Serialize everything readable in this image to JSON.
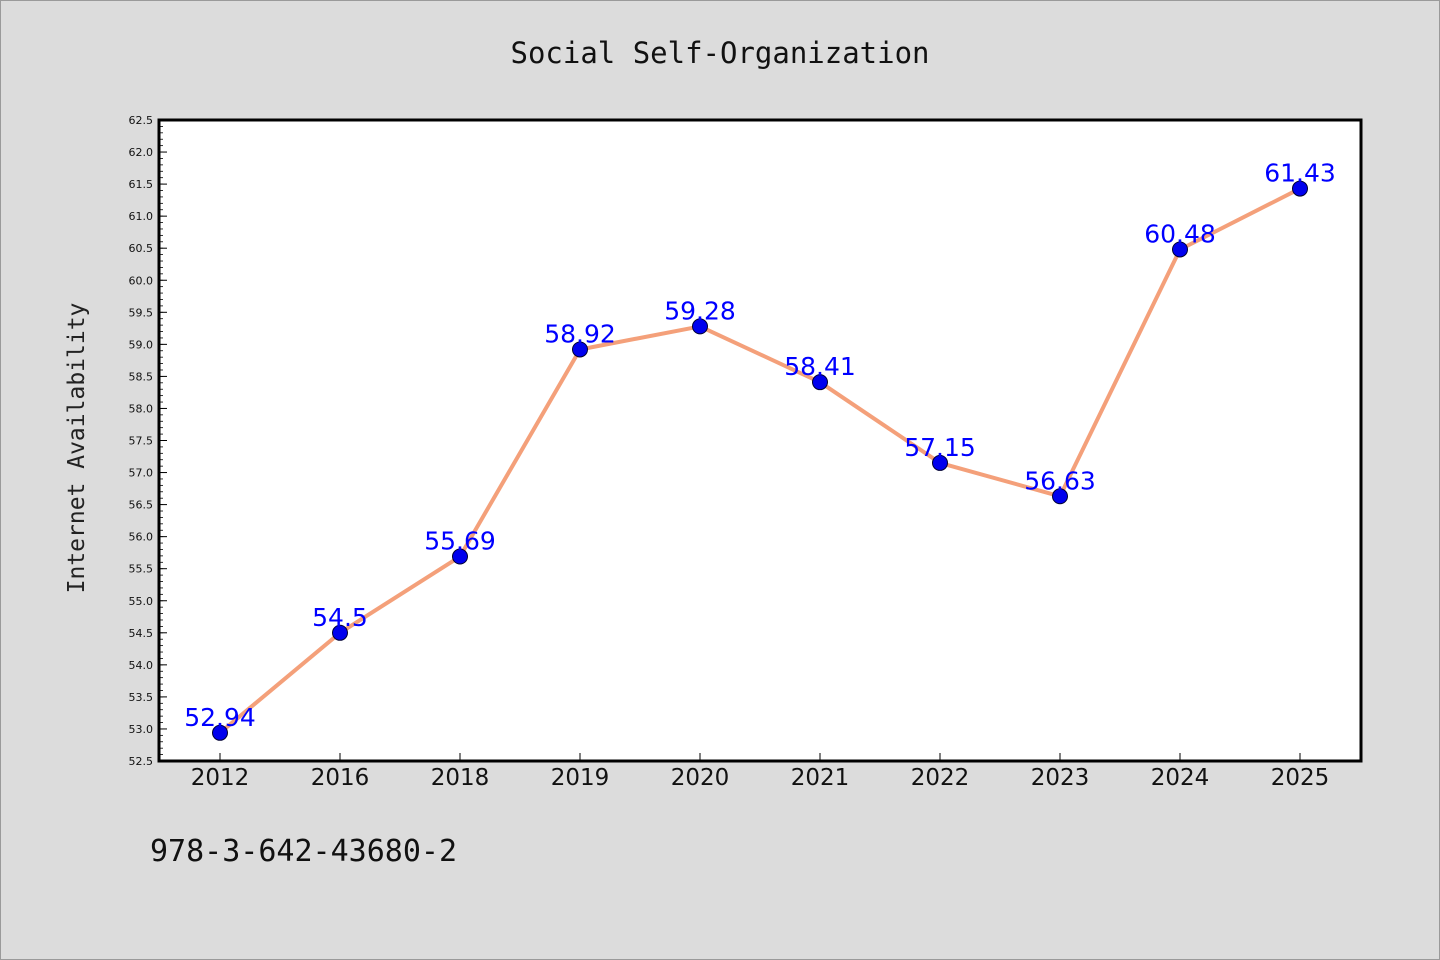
{
  "chart_data": {
    "type": "line",
    "title": "Social Self-Organization",
    "xlabel": "",
    "ylabel": "Internet Availability",
    "categories": [
      "2012",
      "2016",
      "2018",
      "2019",
      "2020",
      "2021",
      "2022",
      "2023",
      "2024",
      "2025"
    ],
    "series": [
      {
        "values": [
          52.94,
          54.5,
          55.69,
          58.92,
          59.28,
          58.41,
          57.15,
          56.63,
          60.48,
          61.43
        ],
        "data_labels": [
          "52.94",
          "54.5",
          "55.69",
          "58.92",
          "59.28",
          "58.41",
          "57.15",
          "56.63",
          "60.48",
          "61.43"
        ],
        "line_color": "#f4a07a",
        "marker_color": "#0000ee"
      }
    ],
    "ylim": [
      52.5,
      62.5
    ],
    "yticks": [
      "52.5",
      "53.0",
      "53.5",
      "54.0",
      "54.5",
      "55.0",
      "55.5",
      "56.0",
      "56.5",
      "57.0",
      "57.5",
      "58.0",
      "58.5",
      "59.0",
      "59.5",
      "60.0",
      "60.5",
      "61.0",
      "61.5",
      "62.0",
      "62.5"
    ],
    "grid": false,
    "legend": "none",
    "label_color": "#0000ff"
  },
  "footer": {
    "code": "978-3-642-43680-2"
  }
}
